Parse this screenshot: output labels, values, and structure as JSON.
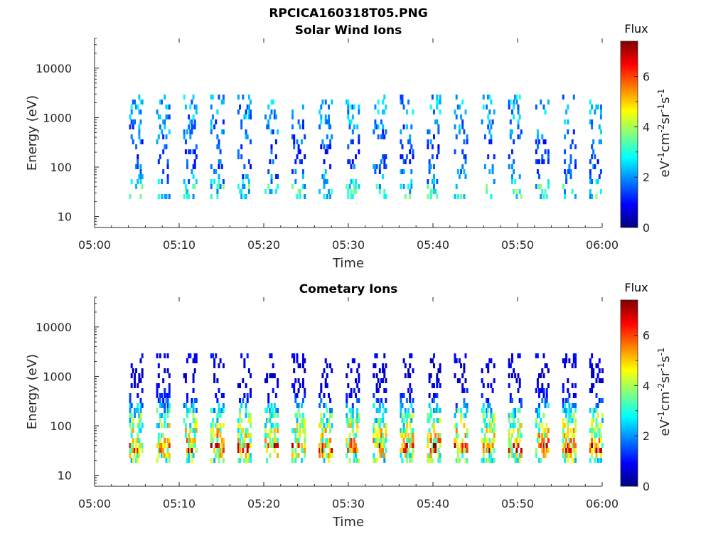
{
  "figure_title": "RPCICA160318T05.PNG",
  "colors": {
    "axis": "#262626",
    "colormap": [
      "#00007f",
      "#0000ff",
      "#007fff",
      "#00ffff",
      "#7fff7f",
      "#ffff00",
      "#ff7f00",
      "#ff0000",
      "#7f0000"
    ]
  },
  "chart_data": [
    {
      "type": "heatmap",
      "title": "Solar Wind Ions",
      "xlabel": "Time",
      "ylabel": "Energy (eV)",
      "x_range": [
        "05:00",
        "06:00"
      ],
      "x_ticks": [
        "05:00",
        "05:10",
        "05:20",
        "05:30",
        "05:40",
        "05:50",
        "06:00"
      ],
      "y_scale": "log",
      "y_range": [
        6,
        40000
      ],
      "y_ticks": [
        10,
        100,
        1000,
        10000
      ],
      "y_tick_labels": [
        "10",
        "100",
        "1000",
        "10000"
      ],
      "colorbar": {
        "label": "Flux",
        "units": "eV-1cm-2sr-1s-1",
        "range": [
          0,
          7.4
        ],
        "ticks": [
          0,
          2,
          4,
          6
        ],
        "tick_labels": [
          "0",
          "2",
          "4",
          "6"
        ]
      },
      "sweep_start_minutes": [
        4.0,
        7.2,
        10.4,
        13.6,
        16.8,
        20.0,
        23.2,
        26.4,
        29.6,
        32.8,
        36.0,
        39.2,
        42.4,
        45.6,
        48.8,
        52.0,
        55.2,
        58.4
      ],
      "energy_profile": [
        {
          "energy": 28,
          "flux": 3.0
        },
        {
          "energy": 40,
          "flux": 3.3
        },
        {
          "energy": 60,
          "flux": 2.2
        },
        {
          "energy": 100,
          "flux": 1.8
        },
        {
          "energy": 200,
          "flux": 1.3
        },
        {
          "energy": 600,
          "flux": 2.0
        },
        {
          "energy": 1500,
          "flux": 2.2
        },
        {
          "energy": 3000,
          "flux": 2.3
        }
      ]
    },
    {
      "type": "heatmap",
      "title": "Cometary Ions",
      "xlabel": "Time",
      "ylabel": "Energy (eV)",
      "x_range": [
        "05:00",
        "06:00"
      ],
      "x_ticks": [
        "05:00",
        "05:10",
        "05:20",
        "05:30",
        "05:40",
        "05:50",
        "06:00"
      ],
      "y_scale": "log",
      "y_range": [
        6,
        40000
      ],
      "y_ticks": [
        10,
        100,
        1000,
        10000
      ],
      "y_tick_labels": [
        "10",
        "100",
        "1000",
        "10000"
      ],
      "colorbar": {
        "label": "Flux",
        "units": "eV-1cm-2sr-1s-1",
        "range": [
          0,
          7.4
        ],
        "ticks": [
          0,
          2,
          4,
          6
        ],
        "tick_labels": [
          "0",
          "2",
          "4",
          "6"
        ]
      },
      "sweep_start_minutes": [
        4.0,
        7.2,
        10.4,
        13.6,
        16.8,
        20.0,
        23.2,
        26.4,
        29.6,
        32.8,
        36.0,
        39.2,
        42.4,
        45.6,
        48.8,
        52.0,
        55.2,
        58.4
      ],
      "energy_profile": [
        {
          "energy": 25,
          "flux": 3.6
        },
        {
          "energy": 40,
          "flux": 6.2
        },
        {
          "energy": 60,
          "flux": 4.7
        },
        {
          "energy": 100,
          "flux": 4.2
        },
        {
          "energy": 200,
          "flux": 3.2
        },
        {
          "energy": 400,
          "flux": 1.2
        },
        {
          "energy": 1200,
          "flux": 0.5
        },
        {
          "energy": 3000,
          "flux": 0.9
        }
      ]
    }
  ]
}
